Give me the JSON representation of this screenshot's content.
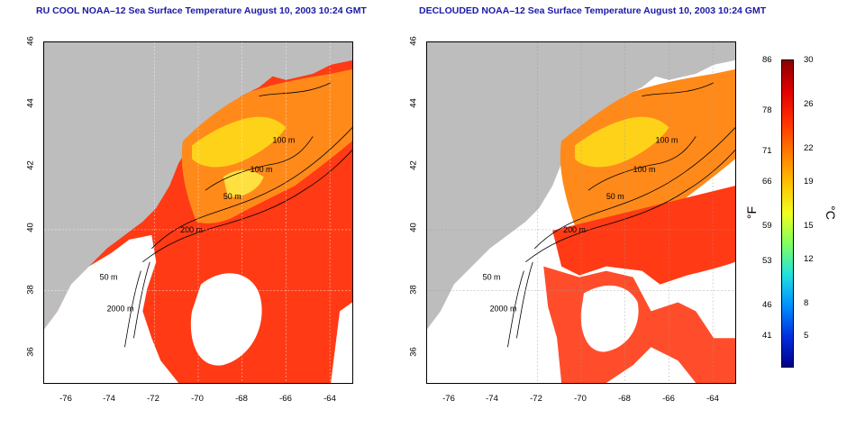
{
  "panels": [
    {
      "title": "RU COOL NOAA–12 Sea Surface Temperature August 10, 2003 10:24 GMT",
      "clouded": true
    },
    {
      "title": "DECLOUDED NOAA–12 Sea Surface Temperature August 10, 2003 10:24 GMT",
      "clouded": false
    }
  ],
  "axes": {
    "lat_ticks": [
      "46",
      "44",
      "42",
      "40",
      "38",
      "36"
    ],
    "lon_ticks": [
      "-76",
      "-74",
      "-72",
      "-70",
      "-68",
      "-66",
      "-64"
    ]
  },
  "contour_labels": {
    "clouded": [
      "100 m",
      "100 m",
      "50 m",
      "200 m",
      "50 m",
      "2000 m"
    ],
    "declouded": [
      "100 m",
      "100 m",
      "50 m",
      "200 m",
      "50 m",
      "2000 m"
    ]
  },
  "colorbar": {
    "fahrenheit_ticks": [
      "86",
      "78",
      "71",
      "66",
      "59",
      "53",
      "46",
      "41"
    ],
    "celsius_ticks": [
      "30",
      "26",
      "22",
      "19",
      "15",
      "12",
      "8",
      "5"
    ],
    "unit_f": "°F",
    "unit_c": "°C",
    "colors": [
      "#8b0000",
      "#e00000",
      "#ff3000",
      "#ff7a00",
      "#ffc000",
      "#f0ff20",
      "#80ff60",
      "#20e0e0",
      "#0090ff",
      "#0030e0",
      "#00008b"
    ]
  },
  "colors": {
    "land": "#bdbdbd",
    "cloud": "#ffffff",
    "warm": "#ff3a14",
    "warmer": "#ff2a10",
    "mid": "#ff8a1a",
    "cool": "#ffd21a",
    "contour": "#000000"
  }
}
